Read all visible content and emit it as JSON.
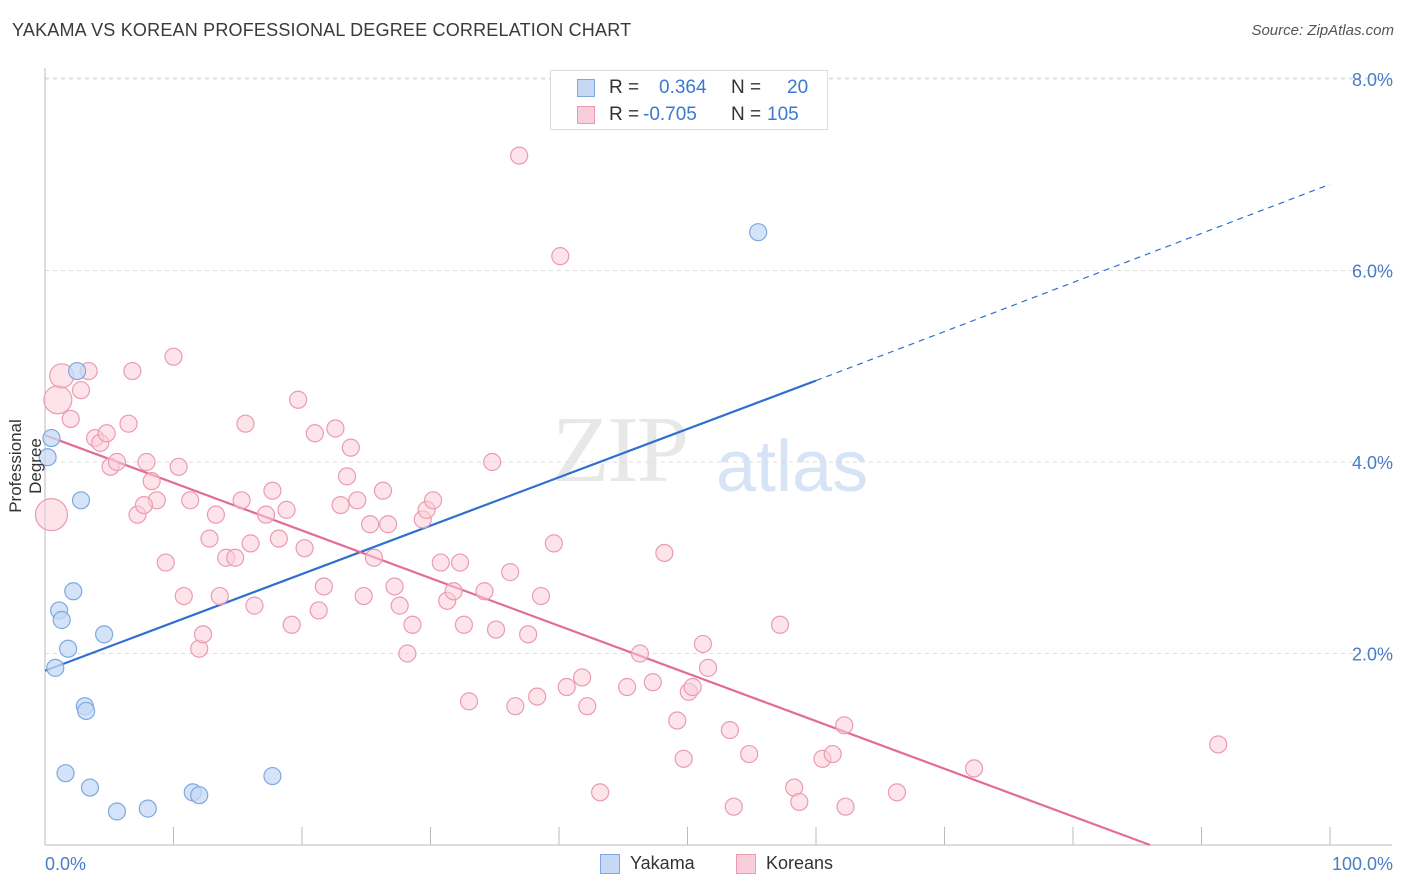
{
  "title": "YAKAMA VS KOREAN PROFESSIONAL DEGREE CORRELATION CHART",
  "source": "Source: ZipAtlas.com",
  "watermark": {
    "zip": "ZIP",
    "atlas": "atlas"
  },
  "legend_top": {
    "rows": [
      {
        "r_label": "R =",
        "r_value": "0.364",
        "n_label": "N =",
        "n_value": "20"
      },
      {
        "r_label": "R =",
        "r_value": "-0.705",
        "n_label": "N =",
        "n_value": "105"
      }
    ]
  },
  "legend_bottom": {
    "yakama": "Yakama",
    "koreans": "Koreans"
  },
  "colors": {
    "yakama_fill": "#c5d9f5",
    "yakama_stroke": "#7fa8e0",
    "yakama_line": "#2f6fd0",
    "korean_fill": "#f9cdd9",
    "korean_stroke": "#ec9ab2",
    "korean_line": "#e26d94",
    "tick_text": "#4a7cc7",
    "grid": "#dddddd"
  },
  "chart_data": {
    "type": "scatter",
    "title": "YAKAMA VS KOREAN PROFESSIONAL DEGREE CORRELATION CHART",
    "xlabel": "",
    "ylabel": "Professional Degree",
    "xlim": [
      0,
      100
    ],
    "ylim": [
      0,
      8.5
    ],
    "x_tick_labels": [
      "0.0%",
      "100.0%"
    ],
    "y_tick_labels": [
      "2.0%",
      "4.0%",
      "6.0%",
      "8.0%"
    ],
    "y_ticks": [
      2,
      4,
      6,
      8
    ],
    "grid": true,
    "legend_placement": "bottom",
    "series": [
      {
        "name": "Yakama",
        "r": 0.364,
        "n": 20,
        "points": [
          [
            0.2,
            4.05
          ],
          [
            0.5,
            4.25
          ],
          [
            2.5,
            4.95
          ],
          [
            2.8,
            3.6
          ],
          [
            2.2,
            2.65
          ],
          [
            1.1,
            2.45
          ],
          [
            1.3,
            2.35
          ],
          [
            1.8,
            2.05
          ],
          [
            4.6,
            2.2
          ],
          [
            0.8,
            1.85
          ],
          [
            3.1,
            1.45
          ],
          [
            3.2,
            1.4
          ],
          [
            1.6,
            0.75
          ],
          [
            3.5,
            0.6
          ],
          [
            5.6,
            0.35
          ],
          [
            8.0,
            0.38
          ],
          [
            11.5,
            0.55
          ],
          [
            12.0,
            0.52
          ],
          [
            17.7,
            0.72
          ],
          [
            55.5,
            6.4
          ]
        ],
        "trend": {
          "x0": 0,
          "y0": 1.82,
          "x1": 60,
          "y1": 4.85,
          "dash_to_x": 100,
          "dash_to_y": 6.9
        }
      },
      {
        "name": "Koreans",
        "r": -0.705,
        "n": 105,
        "points": [
          [
            0.5,
            3.45
          ],
          [
            1.0,
            4.65
          ],
          [
            1.3,
            4.9
          ],
          [
            2.0,
            4.45
          ],
          [
            2.8,
            4.75
          ],
          [
            3.4,
            4.95
          ],
          [
            3.9,
            4.25
          ],
          [
            4.3,
            4.2
          ],
          [
            4.8,
            4.3
          ],
          [
            5.1,
            3.95
          ],
          [
            5.6,
            4.0
          ],
          [
            6.5,
            4.4
          ],
          [
            6.8,
            4.95
          ],
          [
            7.2,
            3.45
          ],
          [
            7.9,
            4.0
          ],
          [
            8.3,
            3.8
          ],
          [
            8.7,
            3.6
          ],
          [
            9.4,
            2.95
          ],
          [
            10.0,
            5.1
          ],
          [
            10.4,
            3.95
          ],
          [
            10.8,
            2.6
          ],
          [
            11.3,
            3.6
          ],
          [
            12.0,
            2.05
          ],
          [
            12.3,
            2.2
          ],
          [
            12.8,
            3.2
          ],
          [
            13.3,
            3.45
          ],
          [
            13.6,
            2.6
          ],
          [
            14.1,
            3.0
          ],
          [
            14.8,
            3.0
          ],
          [
            15.3,
            3.6
          ],
          [
            16.0,
            3.15
          ],
          [
            16.3,
            2.5
          ],
          [
            17.2,
            3.45
          ],
          [
            17.7,
            3.7
          ],
          [
            18.2,
            3.2
          ],
          [
            18.8,
            3.5
          ],
          [
            19.2,
            2.3
          ],
          [
            19.7,
            4.65
          ],
          [
            20.2,
            3.1
          ],
          [
            21.0,
            4.3
          ],
          [
            21.3,
            2.45
          ],
          [
            21.7,
            2.7
          ],
          [
            22.6,
            4.35
          ],
          [
            23.0,
            3.55
          ],
          [
            23.5,
            3.85
          ],
          [
            23.8,
            4.15
          ],
          [
            24.3,
            3.6
          ],
          [
            24.8,
            2.6
          ],
          [
            25.3,
            3.35
          ],
          [
            25.6,
            3.0
          ],
          [
            26.3,
            3.7
          ],
          [
            26.7,
            3.35
          ],
          [
            27.2,
            2.7
          ],
          [
            27.6,
            2.5
          ],
          [
            28.2,
            2.0
          ],
          [
            28.6,
            2.3
          ],
          [
            29.4,
            3.4
          ],
          [
            29.7,
            3.5
          ],
          [
            30.2,
            3.6
          ],
          [
            30.8,
            2.95
          ],
          [
            31.3,
            2.55
          ],
          [
            31.8,
            2.65
          ],
          [
            32.3,
            2.95
          ],
          [
            32.6,
            2.3
          ],
          [
            33.0,
            1.5
          ],
          [
            34.2,
            2.65
          ],
          [
            34.8,
            4.0
          ],
          [
            35.1,
            2.25
          ],
          [
            36.2,
            2.85
          ],
          [
            36.6,
            1.45
          ],
          [
            36.9,
            7.2
          ],
          [
            37.6,
            2.2
          ],
          [
            38.3,
            1.55
          ],
          [
            38.6,
            2.6
          ],
          [
            39.6,
            3.15
          ],
          [
            40.1,
            6.15
          ],
          [
            40.6,
            1.65
          ],
          [
            41.8,
            1.75
          ],
          [
            42.2,
            1.45
          ],
          [
            43.2,
            0.55
          ],
          [
            45.3,
            1.65
          ],
          [
            46.3,
            2.0
          ],
          [
            47.3,
            1.7
          ],
          [
            48.2,
            3.05
          ],
          [
            49.2,
            1.3
          ],
          [
            49.7,
            0.9
          ],
          [
            50.1,
            1.6
          ],
          [
            50.4,
            1.65
          ],
          [
            51.2,
            2.1
          ],
          [
            51.6,
            1.85
          ],
          [
            53.3,
            1.2
          ],
          [
            53.6,
            0.4
          ],
          [
            54.8,
            0.95
          ],
          [
            57.2,
            2.3
          ],
          [
            58.3,
            0.6
          ],
          [
            58.7,
            0.45
          ],
          [
            60.5,
            0.9
          ],
          [
            61.3,
            0.95
          ],
          [
            62.2,
            1.25
          ],
          [
            62.3,
            0.4
          ],
          [
            66.3,
            0.55
          ],
          [
            72.3,
            0.8
          ],
          [
            91.3,
            1.05
          ],
          [
            7.7,
            3.55
          ],
          [
            15.6,
            4.4
          ]
        ],
        "trend": {
          "x0": 0,
          "y0": 4.28,
          "x1": 86,
          "y1": 0.0
        }
      }
    ]
  }
}
